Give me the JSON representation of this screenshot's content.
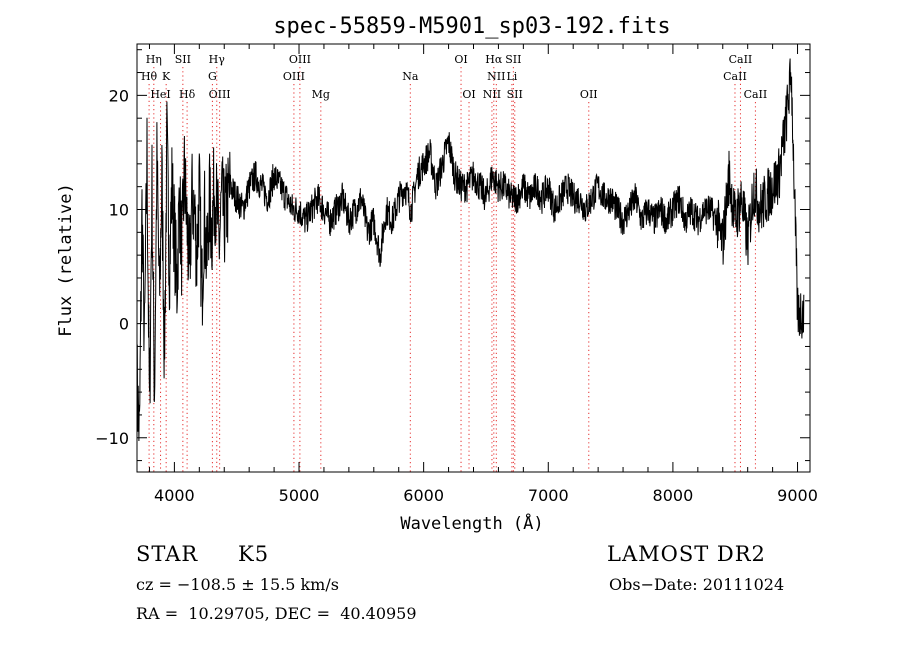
{
  "chart_data": {
    "type": "line",
    "title": "spec-55859-M5901_sp03-192.fits",
    "xlabel": "Wavelength (Å)",
    "ylabel": "Flux (relative)",
    "xlim": [
      3700,
      9100
    ],
    "ylim": [
      -13,
      24.5
    ],
    "x_ticks": [
      4000,
      5000,
      6000,
      7000,
      8000,
      9000
    ],
    "y_ticks": [
      -10,
      0,
      10,
      20
    ],
    "series": [
      {
        "x": [
          3700,
          3720,
          3740,
          3760,
          3780,
          3800,
          3820,
          3840,
          3860,
          3880,
          3900,
          3920,
          3940,
          3960,
          3980,
          4000,
          4020,
          4040,
          4060,
          4080,
          4100,
          4120,
          4140,
          4160,
          4180,
          4200,
          4220,
          4240,
          4260,
          4280,
          4300,
          4320,
          4340,
          4360,
          4380,
          4400,
          4450,
          4500,
          4550,
          4600,
          4650,
          4700,
          4750,
          4800,
          4850,
          4900,
          4950,
          5000,
          5050,
          5100,
          5150,
          5200,
          5250,
          5300,
          5350,
          5400,
          5450,
          5500,
          5550,
          5600,
          5650,
          5700,
          5750,
          5800,
          5850,
          5900,
          5950,
          6000,
          6050,
          6100,
          6150,
          6200,
          6250,
          6300,
          6350,
          6400,
          6450,
          6500,
          6550,
          6600,
          6650,
          6700,
          6750,
          6800,
          6850,
          6900,
          6950,
          7000,
          7050,
          7100,
          7150,
          7200,
          7250,
          7300,
          7350,
          7400,
          7450,
          7500,
          7550,
          7600,
          7650,
          7700,
          7750,
          7800,
          7850,
          7900,
          7950,
          8000,
          8050,
          8100,
          8150,
          8200,
          8250,
          8300,
          8350,
          8400,
          8450,
          8500,
          8550,
          8600,
          8650,
          8700,
          8750,
          8800,
          8850,
          8900,
          8950,
          9000
        ],
        "y": [
          -5,
          -10,
          10,
          -2,
          15,
          -8,
          12,
          -6,
          14,
          2,
          13,
          -3,
          16,
          5,
          12,
          8,
          3,
          11,
          6,
          13,
          9,
          4,
          11,
          10,
          6,
          12,
          2,
          10,
          5,
          11,
          8,
          12,
          10,
          7,
          11,
          9,
          12,
          11,
          10,
          12,
          13,
          12,
          11,
          13,
          12,
          11,
          10,
          10,
          9,
          10,
          11,
          10,
          9,
          10,
          11,
          9,
          10,
          11,
          8,
          9,
          6,
          10,
          9,
          11,
          12,
          10,
          13,
          14,
          15,
          12,
          14,
          16,
          13,
          12,
          12,
          13,
          12,
          11,
          13,
          12,
          12,
          11,
          11,
          12,
          11,
          12,
          11,
          12,
          10,
          11,
          12,
          11,
          11,
          10,
          11,
          12,
          11,
          11,
          10,
          9,
          10,
          11,
          9,
          10,
          9,
          10,
          9,
          10,
          11,
          9,
          10,
          9,
          10,
          10,
          9,
          7,
          13,
          9,
          11,
          7,
          12,
          10,
          11,
          12,
          13,
          17,
          22,
          1
        ]
      }
    ],
    "lines": [
      {
        "label": "Hη",
        "x": 3835,
        "row": 1
      },
      {
        "label": "Hθ",
        "x": 3797,
        "row": 2
      },
      {
        "label": "K",
        "x": 3934,
        "row": 2
      },
      {
        "label": "HeI",
        "x": 3889,
        "row": 3
      },
      {
        "label": "SII",
        "x": 4068,
        "row": 1
      },
      {
        "label": "Hδ",
        "x": 4102,
        "row": 3
      },
      {
        "label": "Hγ",
        "x": 4340,
        "row": 1
      },
      {
        "label": "G",
        "x": 4305,
        "row": 2
      },
      {
        "label": "OIII",
        "x": 4363,
        "row": 3
      },
      {
        "label": "OIII",
        "x": 5007,
        "row": 1
      },
      {
        "label": "OIII",
        "x": 4959,
        "row": 2
      },
      {
        "label": "Mg",
        "x": 5175,
        "row": 3
      },
      {
        "label": "Na",
        "x": 5893,
        "row": 2
      },
      {
        "label": "OI",
        "x": 6300,
        "row": 1
      },
      {
        "label": "OI",
        "x": 6364,
        "row": 3
      },
      {
        "label": "Hα",
        "x": 6563,
        "row": 1
      },
      {
        "label": "SII",
        "x": 6720,
        "row": 1
      },
      {
        "label": "NII",
        "x": 6583,
        "row": 2
      },
      {
        "label": "Li",
        "x": 6708,
        "row": 2
      },
      {
        "label": "NII",
        "x": 6548,
        "row": 3
      },
      {
        "label": "SII",
        "x": 6731,
        "row": 3
      },
      {
        "label": "OII",
        "x": 7325,
        "row": 3
      },
      {
        "label": "CaII",
        "x": 8542,
        "row": 1
      },
      {
        "label": "CaII",
        "x": 8498,
        "row": 2
      },
      {
        "label": "CaII",
        "x": 8662,
        "row": 3
      }
    ]
  },
  "info": {
    "object_class": "STAR",
    "subclass": "K5",
    "survey": "LAMOST DR2",
    "cz": "cz = −108.5 ± 15.5 km/s",
    "obs_date": "Obs−Date: 20111024",
    "coords": "RA =  10.29705, DEC =  40.40959"
  }
}
